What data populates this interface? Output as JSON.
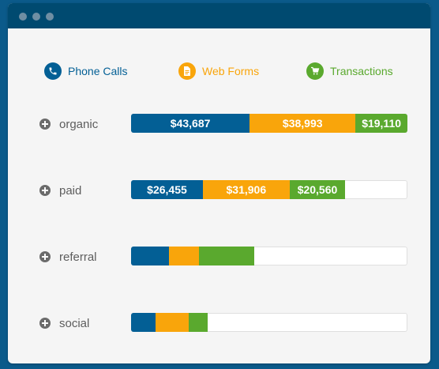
{
  "colors": {
    "phone": "#035f95",
    "web": "#f9a50b",
    "transactions": "#5aa92e"
  },
  "legend": [
    {
      "key": "phone",
      "label": "Phone Calls",
      "icon": "phone-icon"
    },
    {
      "key": "web",
      "label": "Web Forms",
      "icon": "document-icon"
    },
    {
      "key": "transactions",
      "label": "Transactions",
      "icon": "cart-icon"
    }
  ],
  "rows": [
    {
      "label": "organic",
      "segments": [
        {
          "key": "phone",
          "value": 43687,
          "text": "$43,687"
        },
        {
          "key": "web",
          "value": 38993,
          "text": "$38,993"
        },
        {
          "key": "transactions",
          "value": 19110,
          "text": "$19,110"
        }
      ]
    },
    {
      "label": "paid",
      "segments": [
        {
          "key": "phone",
          "value": 26455,
          "text": "$26,455"
        },
        {
          "key": "web",
          "value": 31906,
          "text": "$31,906"
        },
        {
          "key": "transactions",
          "value": 20560,
          "text": "$20,560"
        }
      ]
    },
    {
      "label": "referral",
      "segments": [
        {
          "key": "phone",
          "value": 14000,
          "text": ""
        },
        {
          "key": "web",
          "value": 11000,
          "text": ""
        },
        {
          "key": "transactions",
          "value": 20500,
          "text": ""
        }
      ]
    },
    {
      "label": "social",
      "segments": [
        {
          "key": "phone",
          "value": 8900,
          "text": ""
        },
        {
          "key": "web",
          "value": 12300,
          "text": ""
        },
        {
          "key": "transactions",
          "value": 7000,
          "text": ""
        }
      ]
    }
  ],
  "scale_max": 101790,
  "chart_data": {
    "type": "bar",
    "orientation": "horizontal",
    "stacked": true,
    "categories": [
      "organic",
      "paid",
      "referral",
      "social"
    ],
    "series": [
      {
        "name": "Phone Calls",
        "values": [
          43687,
          26455,
          14000,
          8900
        ]
      },
      {
        "name": "Web Forms",
        "values": [
          38993,
          31906,
          11000,
          12300
        ]
      },
      {
        "name": "Transactions",
        "values": [
          19110,
          20560,
          20500,
          7000
        ]
      }
    ],
    "legend": "top"
  }
}
